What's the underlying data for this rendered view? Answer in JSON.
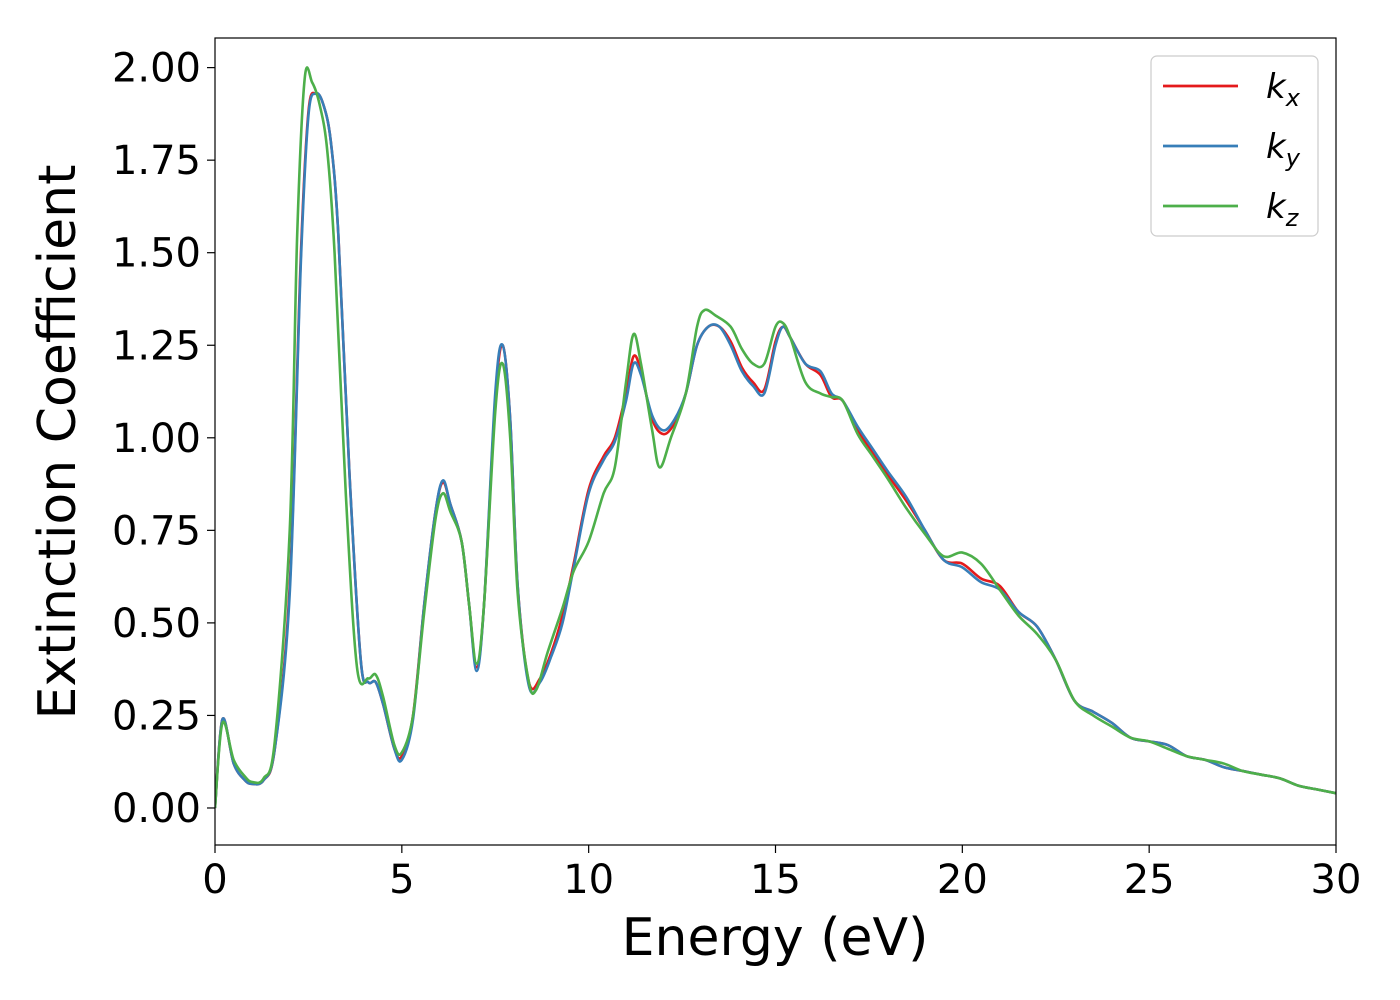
{
  "chart_data": {
    "type": "line",
    "xlabel": "Energy (eV)",
    "ylabel": "Extinction Coefficient",
    "xlim": [
      0,
      30
    ],
    "ylim": [
      -0.1,
      2.08
    ],
    "xticks": [
      0,
      5,
      10,
      15,
      20,
      25,
      30
    ],
    "xtick_labels": [
      "0",
      "5",
      "10",
      "15",
      "20",
      "25",
      "30"
    ],
    "yticks": [
      0,
      0.25,
      0.5,
      0.75,
      1.0,
      1.25,
      1.5,
      1.75,
      2.0
    ],
    "ytick_labels": [
      "0.00",
      "0.25",
      "0.50",
      "0.75",
      "1.00",
      "1.25",
      "1.50",
      "1.75",
      "2.00"
    ],
    "grid": false,
    "legend_position": "top-right",
    "series": [
      {
        "name": "k",
        "subscript": "x",
        "color": "#e41a1c",
        "x": [
          0,
          0.2,
          0.5,
          0.8,
          1.0,
          1.3,
          1.6,
          2.0,
          2.3,
          2.5,
          2.7,
          2.9,
          3.1,
          3.3,
          3.6,
          3.9,
          4.1,
          4.3,
          4.5,
          4.8,
          5.0,
          5.3,
          5.6,
          5.9,
          6.1,
          6.3,
          6.6,
          6.8,
          7.0,
          7.2,
          7.5,
          7.7,
          7.9,
          8.1,
          8.4,
          8.7,
          9.0,
          9.3,
          9.6,
          10.0,
          10.4,
          10.7,
          11.0,
          11.2,
          11.4,
          11.7,
          12.0,
          12.3,
          12.6,
          12.9,
          13.2,
          13.5,
          13.8,
          14.1,
          14.4,
          14.7,
          15.0,
          15.2,
          15.4,
          15.8,
          16.2,
          16.5,
          16.8,
          17.2,
          17.6,
          18.0,
          18.5,
          19.0,
          19.5,
          20.0,
          20.5,
          21.0,
          21.5,
          22.0,
          22.5,
          23.0,
          23.5,
          24.0,
          24.5,
          25.0,
          25.5,
          26.0,
          26.5,
          27.0,
          27.5,
          28.0,
          28.5,
          29.0,
          29.5,
          30.0
        ],
        "y": [
          0.0,
          0.24,
          0.12,
          0.075,
          0.065,
          0.075,
          0.16,
          0.6,
          1.5,
          1.88,
          1.93,
          1.9,
          1.8,
          1.55,
          0.9,
          0.4,
          0.34,
          0.34,
          0.28,
          0.16,
          0.14,
          0.25,
          0.55,
          0.8,
          0.88,
          0.82,
          0.72,
          0.55,
          0.38,
          0.55,
          1.1,
          1.25,
          1.05,
          0.6,
          0.34,
          0.35,
          0.42,
          0.52,
          0.66,
          0.86,
          0.95,
          1.0,
          1.12,
          1.22,
          1.18,
          1.05,
          1.01,
          1.04,
          1.12,
          1.25,
          1.3,
          1.3,
          1.26,
          1.19,
          1.15,
          1.13,
          1.26,
          1.3,
          1.27,
          1.2,
          1.17,
          1.11,
          1.1,
          1.02,
          0.96,
          0.9,
          0.83,
          0.75,
          0.67,
          0.66,
          0.62,
          0.6,
          0.53,
          0.49,
          0.4,
          0.29,
          0.26,
          0.23,
          0.19,
          0.18,
          0.17,
          0.14,
          0.13,
          0.11,
          0.1,
          0.09,
          0.08,
          0.06,
          0.05,
          0.04
        ]
      },
      {
        "name": "k",
        "subscript": "y",
        "color": "#377eb8",
        "x": [
          0,
          0.2,
          0.5,
          0.8,
          1.0,
          1.3,
          1.6,
          2.0,
          2.3,
          2.5,
          2.7,
          2.9,
          3.1,
          3.3,
          3.6,
          3.9,
          4.1,
          4.3,
          4.5,
          4.8,
          5.0,
          5.3,
          5.6,
          5.9,
          6.1,
          6.3,
          6.6,
          6.8,
          7.0,
          7.2,
          7.5,
          7.7,
          7.9,
          8.1,
          8.4,
          8.7,
          9.0,
          9.3,
          9.6,
          10.0,
          10.4,
          10.7,
          11.0,
          11.2,
          11.4,
          11.7,
          12.0,
          12.3,
          12.6,
          12.9,
          13.2,
          13.5,
          13.8,
          14.1,
          14.4,
          14.7,
          15.0,
          15.2,
          15.4,
          15.8,
          16.2,
          16.5,
          16.8,
          17.2,
          17.6,
          18.0,
          18.5,
          19.0,
          19.5,
          20.0,
          20.5,
          21.0,
          21.5,
          22.0,
          22.5,
          23.0,
          23.5,
          24.0,
          24.5,
          25.0,
          25.5,
          26.0,
          26.5,
          27.0,
          27.5,
          28.0,
          28.5,
          29.0,
          29.5,
          30.0
        ],
        "y": [
          0.0,
          0.24,
          0.12,
          0.075,
          0.065,
          0.075,
          0.16,
          0.58,
          1.48,
          1.87,
          1.93,
          1.9,
          1.8,
          1.55,
          0.9,
          0.4,
          0.34,
          0.34,
          0.28,
          0.16,
          0.13,
          0.24,
          0.55,
          0.8,
          0.885,
          0.82,
          0.72,
          0.55,
          0.37,
          0.55,
          1.12,
          1.25,
          1.05,
          0.6,
          0.33,
          0.34,
          0.41,
          0.5,
          0.65,
          0.85,
          0.94,
          0.99,
          1.1,
          1.2,
          1.17,
          1.06,
          1.02,
          1.05,
          1.12,
          1.25,
          1.3,
          1.3,
          1.25,
          1.18,
          1.14,
          1.12,
          1.25,
          1.3,
          1.27,
          1.2,
          1.18,
          1.12,
          1.1,
          1.03,
          0.97,
          0.91,
          0.84,
          0.75,
          0.67,
          0.65,
          0.61,
          0.59,
          0.53,
          0.49,
          0.4,
          0.29,
          0.26,
          0.23,
          0.19,
          0.18,
          0.17,
          0.14,
          0.13,
          0.11,
          0.1,
          0.09,
          0.08,
          0.06,
          0.05,
          0.04
        ]
      },
      {
        "name": "k",
        "subscript": "z",
        "color": "#4daf4a",
        "x": [
          0,
          0.2,
          0.5,
          0.8,
          1.0,
          1.3,
          1.6,
          2.0,
          2.2,
          2.4,
          2.6,
          2.8,
          3.0,
          3.2,
          3.5,
          3.8,
          4.1,
          4.3,
          4.5,
          4.8,
          5.0,
          5.3,
          5.6,
          5.9,
          6.1,
          6.3,
          6.6,
          6.8,
          7.0,
          7.2,
          7.5,
          7.7,
          7.9,
          8.1,
          8.4,
          8.6,
          8.9,
          9.3,
          9.6,
          10.0,
          10.4,
          10.7,
          11.0,
          11.2,
          11.4,
          11.7,
          11.9,
          12.2,
          12.6,
          12.9,
          13.1,
          13.4,
          13.8,
          14.1,
          14.4,
          14.7,
          15.0,
          15.2,
          15.4,
          15.8,
          16.2,
          16.5,
          16.8,
          17.2,
          17.6,
          18.0,
          18.5,
          19.0,
          19.5,
          20.0,
          20.5,
          21.0,
          21.5,
          22.0,
          22.5,
          23.0,
          23.5,
          24.0,
          24.5,
          25.0,
          25.5,
          26.0,
          26.5,
          27.0,
          27.5,
          28.0,
          28.5,
          29.0,
          29.5,
          30.0
        ],
        "y": [
          0.0,
          0.23,
          0.13,
          0.085,
          0.07,
          0.08,
          0.18,
          0.75,
          1.55,
          1.97,
          1.96,
          1.9,
          1.78,
          1.5,
          0.85,
          0.38,
          0.35,
          0.36,
          0.3,
          0.17,
          0.15,
          0.25,
          0.53,
          0.78,
          0.85,
          0.8,
          0.72,
          0.55,
          0.39,
          0.55,
          1.07,
          1.2,
          1.0,
          0.58,
          0.34,
          0.32,
          0.42,
          0.54,
          0.64,
          0.72,
          0.85,
          0.92,
          1.15,
          1.28,
          1.2,
          1.02,
          0.92,
          1.0,
          1.12,
          1.3,
          1.345,
          1.33,
          1.3,
          1.24,
          1.2,
          1.2,
          1.3,
          1.31,
          1.27,
          1.15,
          1.12,
          1.11,
          1.1,
          1.01,
          0.95,
          0.89,
          0.81,
          0.74,
          0.68,
          0.69,
          0.66,
          0.59,
          0.52,
          0.47,
          0.4,
          0.29,
          0.25,
          0.22,
          0.19,
          0.18,
          0.16,
          0.14,
          0.13,
          0.12,
          0.1,
          0.09,
          0.08,
          0.06,
          0.05,
          0.04
        ]
      }
    ]
  }
}
